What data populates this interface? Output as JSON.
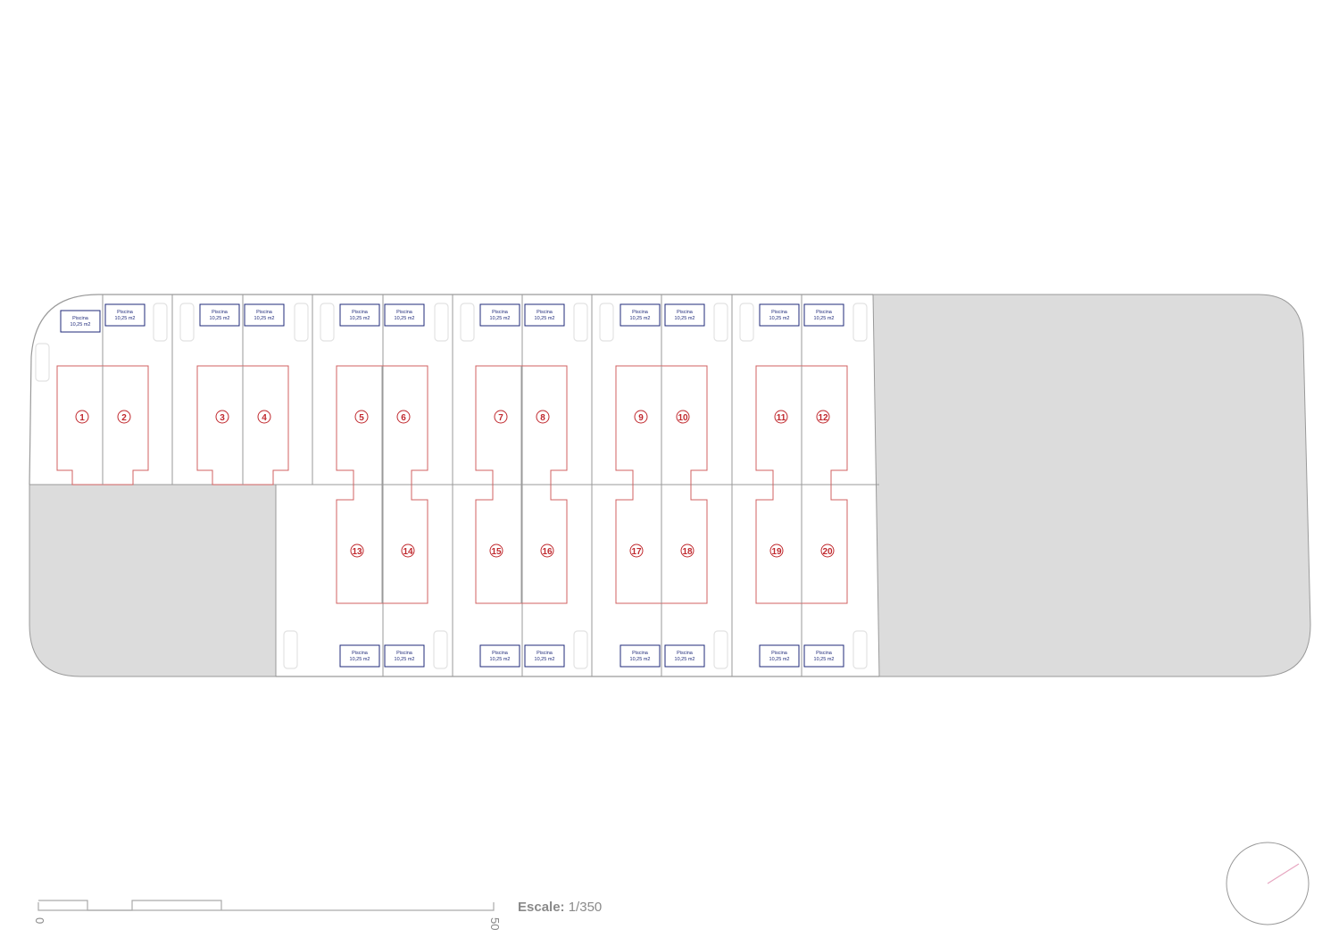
{
  "plan": {
    "colors": {
      "outline": "#9a9a9a",
      "grey_area": "#dcdcdc",
      "house_line": "#d06060",
      "number": "#c0282d",
      "pool_border": "#1f2a7a",
      "pool_text": "#1f2a7a",
      "car": "#e2e2e2"
    },
    "pool": {
      "title": "Piscina",
      "area": "10,25 m2"
    },
    "top_lots": [
      "1",
      "2",
      "3",
      "4",
      "5",
      "6",
      "7",
      "8",
      "9",
      "10",
      "11",
      "12"
    ],
    "bottom_lots": [
      "13",
      "14",
      "15",
      "16",
      "17",
      "18",
      "19",
      "20"
    ]
  },
  "scale_bar": {
    "label_prefix": "Escale:",
    "label_value": "1/350",
    "start_tick": "0",
    "end_tick": "50"
  },
  "north_arrow": {
    "icon": "north-arrow-icon"
  }
}
